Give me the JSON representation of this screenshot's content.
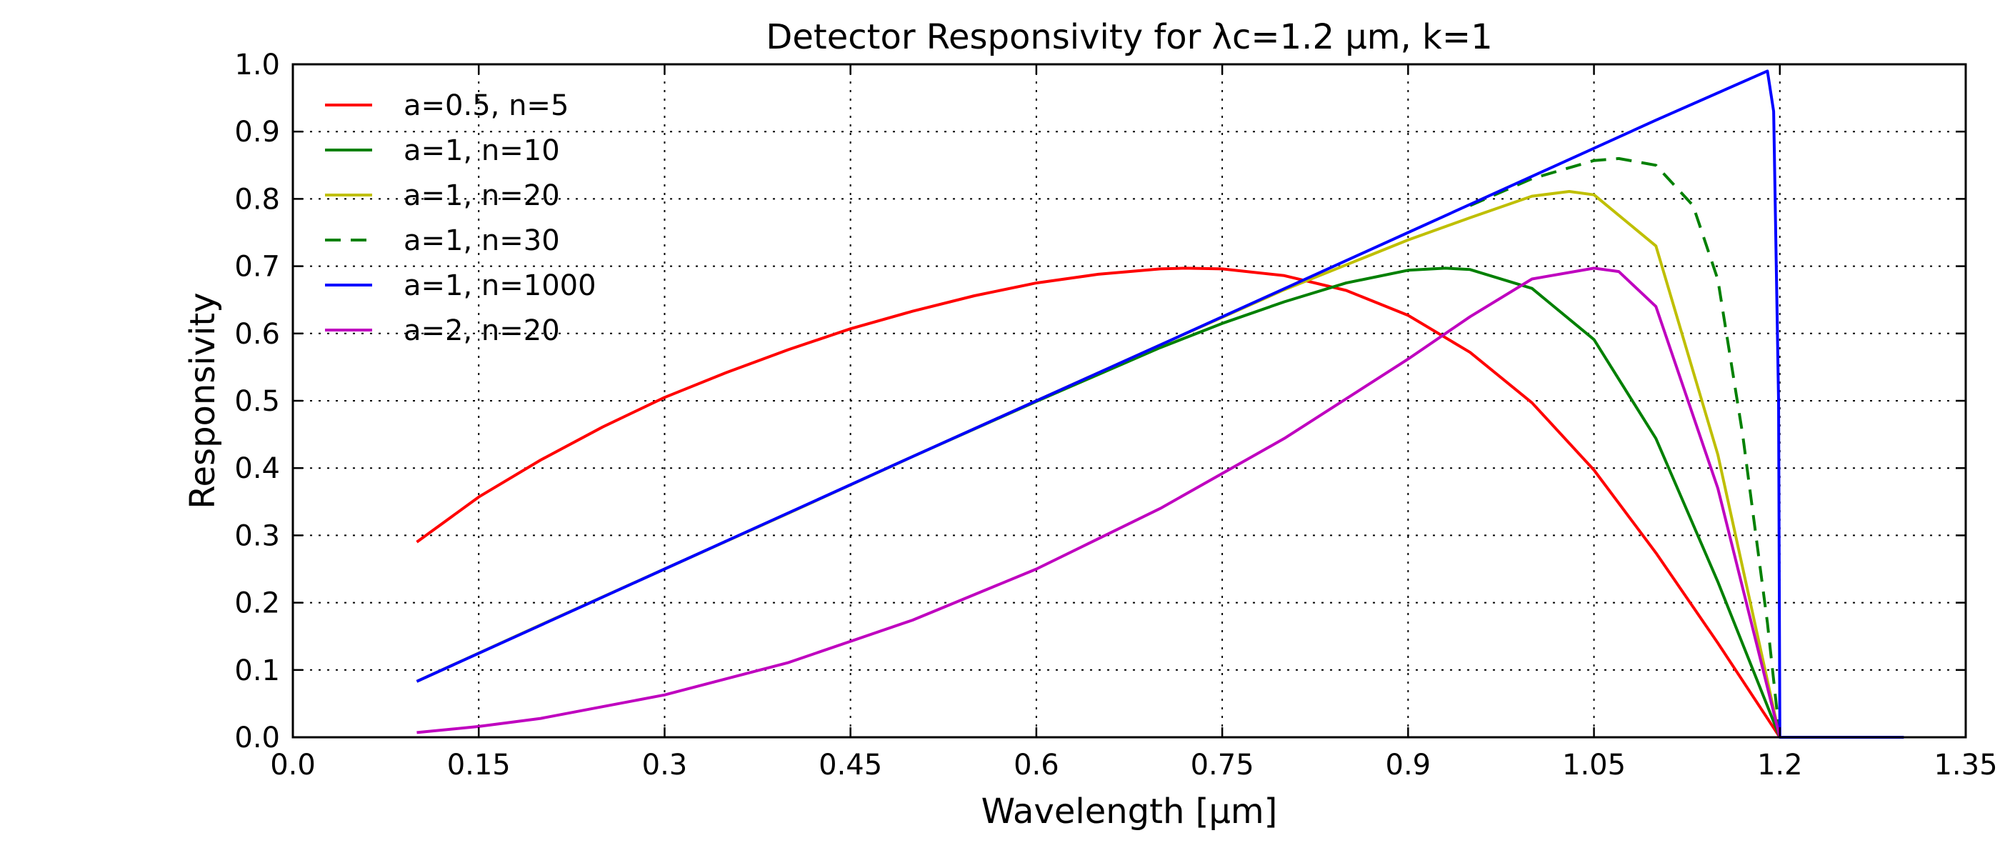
{
  "chart_data": {
    "type": "line",
    "title": "Detector Responsivity for λc=1.2 μm, k=1",
    "xlabel": "Wavelength [μm]",
    "ylabel": "Responsivity",
    "xlim": [
      0.0,
      1.35
    ],
    "ylim": [
      0.0,
      1.0
    ],
    "xticks": [
      "0.0",
      "0.15",
      "0.3",
      "0.45",
      "0.6",
      "0.75",
      "0.9",
      "1.05",
      "1.2",
      "1.35"
    ],
    "xtick_values": [
      0.0,
      0.15,
      0.3,
      0.45,
      0.6,
      0.75,
      0.9,
      1.05,
      1.2,
      1.35
    ],
    "yticks": [
      "0.0",
      "0.1",
      "0.2",
      "0.3",
      "0.4",
      "0.5",
      "0.6",
      "0.7",
      "0.8",
      "0.9",
      "1.0"
    ],
    "ytick_values": [
      0.0,
      0.1,
      0.2,
      0.3,
      0.4,
      0.5,
      0.6,
      0.7,
      0.8,
      0.9,
      1.0
    ],
    "grid": true,
    "legend_position": "top-left",
    "series": [
      {
        "name": "a=0.5, n=5",
        "color": "#ff0000",
        "dash": "solid",
        "x": [
          0.1,
          0.15,
          0.2,
          0.25,
          0.3,
          0.35,
          0.4,
          0.45,
          0.5,
          0.55,
          0.6,
          0.65,
          0.7,
          0.72,
          0.75,
          0.8,
          0.85,
          0.9,
          0.95,
          1.0,
          1.05,
          1.1,
          1.15,
          1.2
        ],
        "y": [
          0.29,
          0.357,
          0.412,
          0.461,
          0.505,
          0.542,
          0.576,
          0.607,
          0.633,
          0.656,
          0.675,
          0.688,
          0.696,
          0.697,
          0.696,
          0.686,
          0.664,
          0.627,
          0.572,
          0.497,
          0.397,
          0.274,
          0.14,
          0.0
        ]
      },
      {
        "name": "a=1, n=10",
        "color": "#008000",
        "dash": "solid",
        "x": [
          0.1,
          0.2,
          0.3,
          0.4,
          0.5,
          0.6,
          0.7,
          0.75,
          0.8,
          0.85,
          0.9,
          0.93,
          0.95,
          1.0,
          1.05,
          1.1,
          1.15,
          1.2
        ],
        "y": [
          0.083,
          0.167,
          0.25,
          0.333,
          0.417,
          0.499,
          0.579,
          0.615,
          0.647,
          0.675,
          0.694,
          0.697,
          0.695,
          0.667,
          0.591,
          0.444,
          0.231,
          0.0
        ]
      },
      {
        "name": "a=1, n=20",
        "color": "#bfbf00",
        "dash": "solid",
        "x": [
          0.1,
          0.2,
          0.3,
          0.4,
          0.5,
          0.6,
          0.7,
          0.8,
          0.9,
          0.95,
          1.0,
          1.03,
          1.05,
          1.1,
          1.15,
          1.2
        ],
        "y": [
          0.083,
          0.167,
          0.25,
          0.333,
          0.417,
          0.5,
          0.583,
          0.665,
          0.739,
          0.772,
          0.804,
          0.811,
          0.806,
          0.73,
          0.42,
          0.0
        ]
      },
      {
        "name": "a=1, n=30",
        "color": "#008000",
        "dash": "dashed",
        "x": [
          0.95,
          1.0,
          1.05,
          1.07,
          1.1,
          1.13,
          1.15,
          1.17,
          1.19,
          1.2
        ],
        "y": [
          0.79,
          0.83,
          0.857,
          0.86,
          0.85,
          0.79,
          0.68,
          0.45,
          0.17,
          0.0
        ]
      },
      {
        "name": "a=1, n=1000",
        "color": "#0000ff",
        "dash": "solid",
        "x": [
          0.1,
          0.3,
          0.5,
          0.7,
          0.9,
          1.1,
          1.19,
          1.195,
          1.199,
          1.2,
          1.25,
          1.3
        ],
        "y": [
          0.083,
          0.25,
          0.417,
          0.583,
          0.75,
          0.917,
          0.99,
          0.93,
          0.5,
          0.0,
          0.0,
          0.0
        ]
      },
      {
        "name": "a=2, n=20",
        "color": "#bf00bf",
        "dash": "solid",
        "x": [
          0.1,
          0.15,
          0.2,
          0.3,
          0.4,
          0.5,
          0.6,
          0.7,
          0.8,
          0.9,
          0.95,
          1.0,
          1.05,
          1.07,
          1.1,
          1.15,
          1.2
        ],
        "y": [
          0.007,
          0.016,
          0.028,
          0.063,
          0.111,
          0.174,
          0.25,
          0.34,
          0.444,
          0.562,
          0.625,
          0.681,
          0.697,
          0.692,
          0.64,
          0.37,
          0.0
        ]
      }
    ]
  }
}
